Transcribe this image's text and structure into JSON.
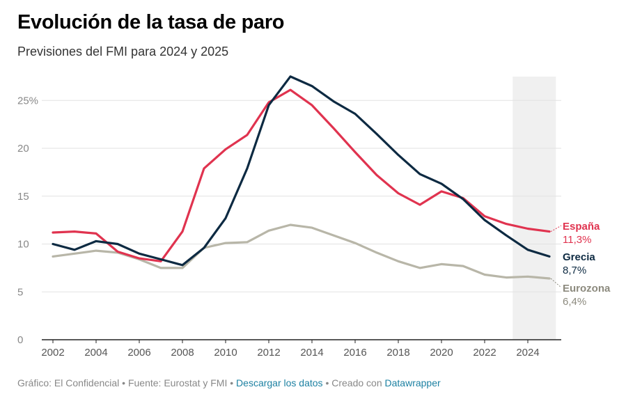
{
  "title": "Evolución de la tasa de paro",
  "subtitle": "Previsiones del FMI para 2024 y 2025",
  "footer": {
    "source_text": "Gráfico: El Confidencial • Fuente: Eurostat y FMI •",
    "download_label": "Descargar los datos",
    "created_text": "• Creado con",
    "datawrapper_label": "Datawrapper"
  },
  "colors": {
    "espana": "#e0334f",
    "grecia": "#0d2a42",
    "eurozona": "#b8b6a8",
    "eurozona_label": "#8c8a7e",
    "forecast_shade": "#f0f0f0",
    "grid": "#e2e2e2",
    "tick_text": "#888888"
  },
  "chart_data": {
    "type": "line",
    "x": [
      2002,
      2003,
      2004,
      2005,
      2006,
      2007,
      2008,
      2009,
      2010,
      2011,
      2012,
      2013,
      2014,
      2015,
      2016,
      2017,
      2018,
      2019,
      2020,
      2021,
      2022,
      2023,
      2024,
      2025
    ],
    "xlim": [
      2002,
      2025
    ],
    "ylim": [
      0,
      27.5
    ],
    "yticks": [
      0,
      5,
      10,
      15,
      20,
      25
    ],
    "ytick_labels": [
      "0",
      "5",
      "10",
      "15",
      "20",
      "25%"
    ],
    "xticks": [
      2002,
      2004,
      2006,
      2008,
      2010,
      2012,
      2014,
      2016,
      2018,
      2020,
      2022,
      2024
    ],
    "xtick_labels": [
      "2002",
      "2004",
      "2006",
      "2008",
      "2010",
      "2012",
      "2014",
      "2016",
      "2018",
      "2020",
      "2022",
      "2024"
    ],
    "grid": true,
    "forecast_range": [
      2023.3,
      2025.3
    ],
    "series": [
      {
        "key": "espana",
        "name": "España",
        "end_label": "11,3%",
        "values": [
          11.2,
          11.3,
          11.1,
          9.2,
          8.5,
          8.2,
          11.3,
          17.9,
          19.9,
          21.4,
          24.8,
          26.1,
          24.5,
          22.1,
          19.6,
          17.2,
          15.3,
          14.1,
          15.5,
          14.8,
          12.9,
          12.1,
          11.6,
          11.3
        ]
      },
      {
        "key": "grecia",
        "name": "Grecia",
        "end_label": "8,7%",
        "values": [
          10.0,
          9.4,
          10.3,
          10.0,
          9.0,
          8.4,
          7.8,
          9.6,
          12.7,
          17.9,
          24.5,
          27.5,
          26.5,
          24.9,
          23.6,
          21.5,
          19.3,
          17.3,
          16.3,
          14.7,
          12.5,
          10.9,
          9.4,
          8.7
        ]
      },
      {
        "key": "eurozona",
        "name": "Eurozona",
        "end_label": "6,4%",
        "values": [
          8.7,
          9.0,
          9.3,
          9.1,
          8.4,
          7.5,
          7.5,
          9.6,
          10.1,
          10.2,
          11.4,
          12.0,
          11.7,
          10.9,
          10.1,
          9.1,
          8.2,
          7.5,
          7.9,
          7.7,
          6.8,
          6.5,
          6.6,
          6.4
        ]
      }
    ]
  }
}
